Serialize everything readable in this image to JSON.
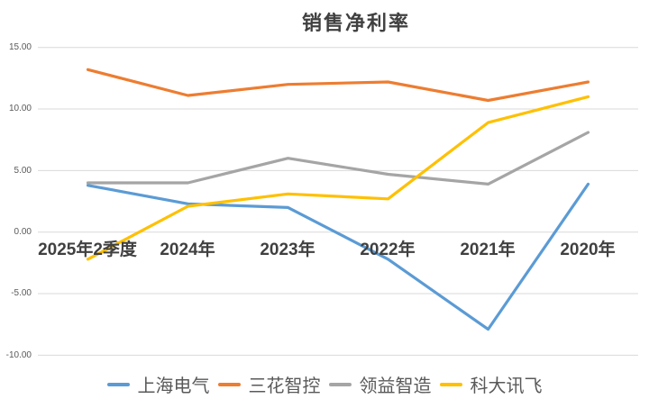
{
  "title": "销售净利率",
  "chart_data": {
    "type": "line",
    "categories": [
      "2025年2季度",
      "2024年",
      "2023年",
      "2022年",
      "2021年",
      "2020年"
    ],
    "series": [
      {
        "name": "上海电气",
        "color": "#5B9BD5",
        "values": [
          3.8,
          2.3,
          2.0,
          -2.2,
          -7.9,
          3.9
        ]
      },
      {
        "name": "三花智控",
        "color": "#ED7D31",
        "values": [
          13.2,
          11.1,
          12.0,
          12.2,
          10.7,
          12.2
        ]
      },
      {
        "name": "领益智造",
        "color": "#A5A5A5",
        "values": [
          4.0,
          4.0,
          6.0,
          4.7,
          3.9,
          8.1
        ]
      },
      {
        "name": "科大讯飞",
        "color": "#FFC000",
        "values": [
          -2.2,
          2.1,
          3.1,
          2.7,
          8.9,
          11.0
        ]
      }
    ],
    "ylim": [
      -10,
      15
    ],
    "ytick_step": 5,
    "ytick_labels": [
      "15.00",
      "10.00",
      "5.00",
      "0.00",
      "-5.00",
      "-10.00"
    ],
    "xlabel": "",
    "ylabel": "",
    "grid": true,
    "legend_position": "bottom",
    "colors": {
      "gridline": "#D9D9D9",
      "axis_text": "#595959",
      "category_text": "#404040",
      "title_text": "#404040"
    }
  }
}
